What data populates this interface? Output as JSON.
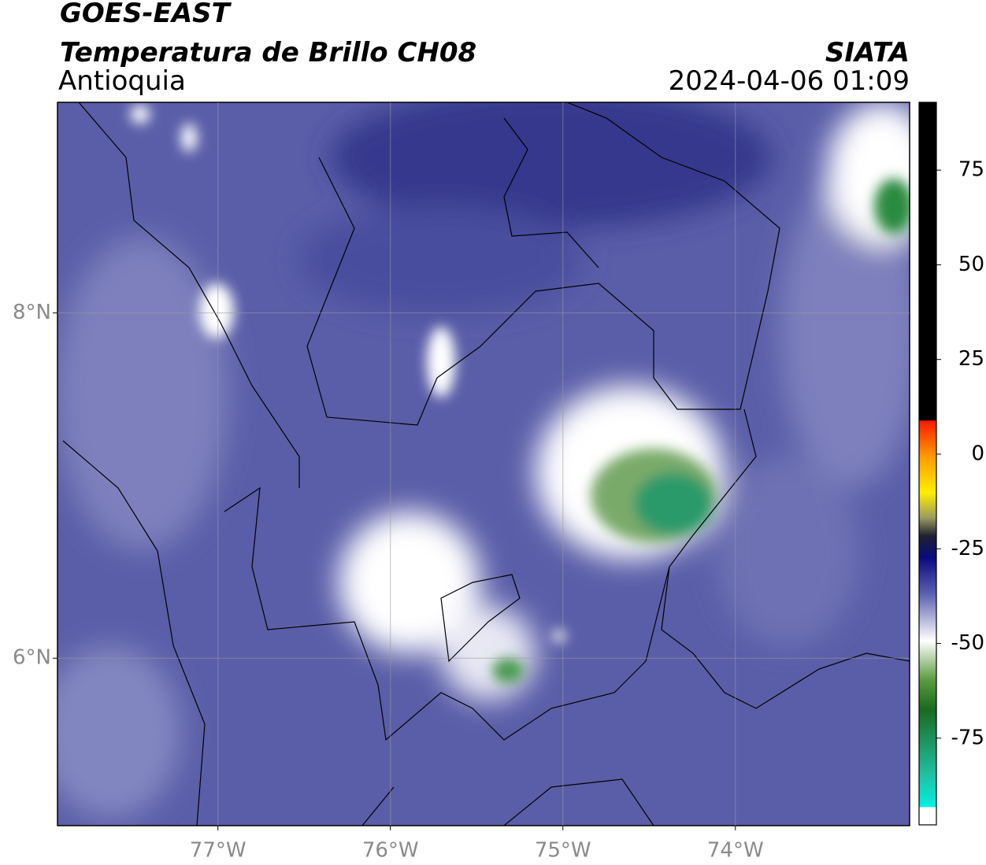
{
  "header": {
    "title": "GOES-EAST",
    "subtitle": "Temperatura de Brillo CH08",
    "region": "Antioquia",
    "source": "SIATA",
    "timestamp": "2024-04-06 01:09"
  },
  "map": {
    "xlim": [
      -77.93,
      -72.99
    ],
    "ylim": [
      5.03,
      9.22
    ],
    "lon_ticks": [
      {
        "value": -77,
        "label": "77°W"
      },
      {
        "value": -76,
        "label": "76°W"
      },
      {
        "value": -75,
        "label": "75°W"
      },
      {
        "value": -74,
        "label": "74°W"
      }
    ],
    "lat_ticks": [
      {
        "value": 8,
        "label": "8°N"
      },
      {
        "value": 6,
        "label": "6°N"
      }
    ]
  },
  "colorbar": {
    "lim": [
      -97.9,
      92.9
    ],
    "ticks": [
      75,
      50,
      25,
      0,
      -25,
      -50,
      -75
    ]
  }
}
